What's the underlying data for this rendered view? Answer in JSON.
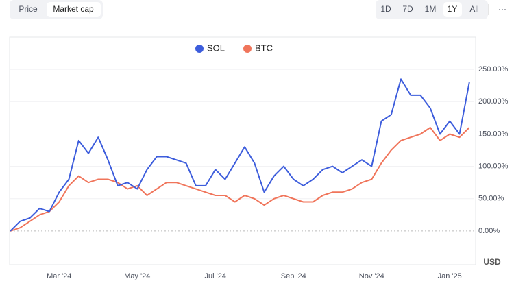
{
  "ui": {
    "view_tabs": [
      "Price",
      "Market cap"
    ],
    "range_tabs": [
      "1D",
      "7D",
      "1M",
      "1Y",
      "All"
    ],
    "more": "···",
    "currency": "USD"
  },
  "chart_data": {
    "type": "line",
    "categories": [
      null,
      null,
      null,
      null,
      null,
      "Mar '24",
      null,
      null,
      null,
      null,
      null,
      null,
      null,
      "May '24",
      null,
      null,
      null,
      null,
      null,
      null,
      null,
      "Jul '24",
      null,
      null,
      null,
      null,
      null,
      null,
      null,
      "Sep '24",
      null,
      null,
      null,
      null,
      null,
      null,
      null,
      "Nov '24",
      null,
      null,
      null,
      null,
      null,
      null,
      null,
      "Jan '25",
      null,
      null
    ],
    "series": [
      {
        "name": "SOL",
        "color": "#3d5ddc",
        "values": [
          0,
          15,
          20,
          35,
          30,
          60,
          80,
          140,
          120,
          145,
          110,
          70,
          75,
          65,
          95,
          115,
          115,
          110,
          105,
          70,
          70,
          95,
          80,
          105,
          130,
          105,
          60,
          85,
          100,
          80,
          70,
          80,
          95,
          100,
          90,
          100,
          110,
          100,
          170,
          180,
          235,
          210,
          210,
          190,
          150,
          170,
          150,
          230
        ]
      },
      {
        "name": "BTC",
        "color": "#f0755b",
        "values": [
          0,
          5,
          15,
          25,
          30,
          45,
          70,
          85,
          75,
          80,
          80,
          75,
          65,
          70,
          55,
          65,
          75,
          75,
          70,
          65,
          60,
          55,
          55,
          45,
          55,
          50,
          40,
          50,
          55,
          50,
          45,
          45,
          55,
          60,
          60,
          65,
          75,
          80,
          105,
          125,
          140,
          145,
          150,
          160,
          140,
          150,
          145,
          160
        ]
      }
    ],
    "ylim": [
      -51,
      300
    ],
    "yticks": [
      {
        "value": 0,
        "label": "0.00%"
      },
      {
        "value": 50,
        "label": "50.00%"
      },
      {
        "value": 100,
        "label": "100.00%"
      },
      {
        "value": 150,
        "label": "150.00%"
      },
      {
        "value": 200,
        "label": "200.00%"
      },
      {
        "value": 250,
        "label": "250.00%"
      }
    ],
    "grid": true,
    "legend": "top"
  }
}
